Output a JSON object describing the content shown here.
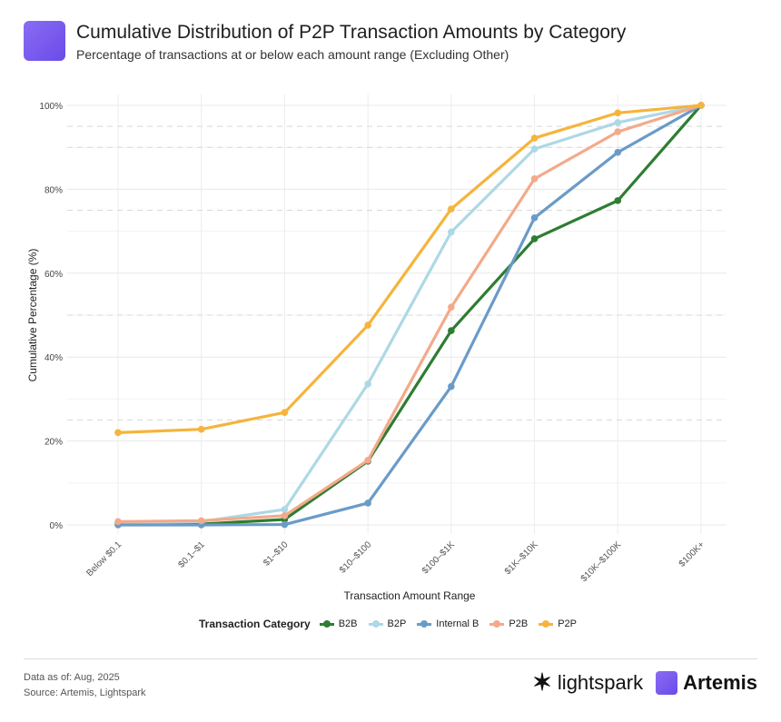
{
  "header": {
    "title": "Cumulative Distribution of P2P Transaction Amounts by Category",
    "subtitle": "Percentage of transactions at or below each amount range (Excluding Other)"
  },
  "chart_data": {
    "type": "line",
    "title": "Cumulative Distribution of P2P Transaction Amounts by Category",
    "xlabel": "Transaction Amount Range",
    "ylabel": "Cumulative Percentage (%)",
    "ylim": [
      0,
      100
    ],
    "yticks": [
      0,
      20,
      40,
      60,
      80,
      100
    ],
    "ytick_labels": [
      "0%",
      "20%",
      "40%",
      "60%",
      "80%",
      "100%"
    ],
    "reference_lines": [
      25,
      50,
      75,
      90,
      95
    ],
    "categories": [
      "Below $0.1",
      "$0.1–$1",
      "$1–$10",
      "$10–$100",
      "$100–$1K",
      "$1K–$10K",
      "$10K–$100K",
      "$100K+"
    ],
    "legend_title": "Transaction Category",
    "legend_position": "bottom",
    "series": [
      {
        "name": "B2B",
        "color": "#2e7d32",
        "values": [
          0.2,
          0.2,
          1.3,
          15.2,
          46.3,
          68.2,
          77.3,
          100
        ]
      },
      {
        "name": "B2P",
        "color": "#add8e6",
        "values": [
          0.5,
          0.8,
          3.7,
          33.6,
          69.8,
          89.6,
          95.9,
          100
        ]
      },
      {
        "name": "Internal B",
        "color": "#6a9bc8",
        "values": [
          0,
          0,
          0.1,
          5.2,
          33,
          73.2,
          88.8,
          100
        ]
      },
      {
        "name": "P2B",
        "color": "#f4a98a",
        "values": [
          0.8,
          1.0,
          2.2,
          15.4,
          51.9,
          82.5,
          93.7,
          100
        ]
      },
      {
        "name": "P2P",
        "color": "#f5b43c",
        "values": [
          22.0,
          22.8,
          26.8,
          47.6,
          75.3,
          92.2,
          98.2,
          100
        ]
      }
    ]
  },
  "footer": {
    "date": "Data as of: Aug, 2025",
    "source": "Source: Artemis, Lightspark",
    "brand1": "lightspark",
    "brand2": "Artemis"
  }
}
